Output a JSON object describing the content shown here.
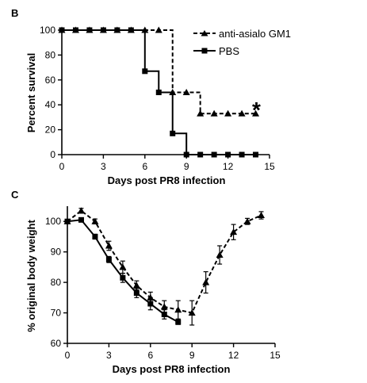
{
  "chart_data": [
    {
      "panel": "B",
      "type": "line",
      "xlabel": "Days post PR8 infection",
      "ylabel": "Percent survival",
      "xlim": [
        0,
        15
      ],
      "ylim": [
        0,
        100
      ],
      "xticks": [
        0,
        3,
        6,
        9,
        12,
        15
      ],
      "yticks": [
        0,
        20,
        40,
        60,
        80,
        100
      ],
      "grid": false,
      "legend": "top-right",
      "annotation": "*",
      "series": [
        {
          "name": "anti-asialo GM1",
          "style": "dashed",
          "marker": "triangle",
          "step_x": [
            0,
            8,
            8,
            10,
            10,
            14
          ],
          "step_y": [
            100,
            100,
            50,
            50,
            33,
            33
          ],
          "marker_x": [
            0,
            1,
            2,
            3,
            4,
            5,
            6,
            7,
            8,
            9,
            10,
            11,
            12,
            13,
            14
          ],
          "marker_y": [
            100,
            100,
            100,
            100,
            100,
            100,
            100,
            100,
            50,
            50,
            33,
            33,
            33,
            33,
            33
          ]
        },
        {
          "name": "PBS",
          "style": "solid",
          "marker": "square",
          "step_x": [
            0,
            6,
            6,
            7,
            7,
            8,
            8,
            9,
            9,
            14
          ],
          "step_y": [
            100,
            100,
            67,
            67,
            50,
            50,
            17,
            17,
            0,
            0
          ],
          "marker_x": [
            0,
            1,
            2,
            3,
            4,
            5,
            6,
            7,
            8,
            9,
            10,
            11,
            12,
            13,
            14
          ],
          "marker_y": [
            100,
            100,
            100,
            100,
            100,
            100,
            67,
            50,
            17,
            0,
            0,
            0,
            0,
            0,
            0
          ]
        }
      ]
    },
    {
      "panel": "C",
      "type": "line",
      "xlabel": "Days post PR8 infection",
      "ylabel": "% original body weight",
      "xlim": [
        0,
        15
      ],
      "ylim": [
        60,
        105
      ],
      "xticks": [
        0,
        3,
        6,
        9,
        12,
        15
      ],
      "yticks": [
        60,
        70,
        80,
        90,
        100
      ],
      "grid": false,
      "series": [
        {
          "name": "anti-asialo GM1",
          "style": "dashed",
          "marker": "triangle",
          "x": [
            0,
            1,
            2,
            3,
            4,
            5,
            6,
            7,
            8,
            9,
            10,
            11,
            12,
            13,
            14
          ],
          "y": [
            100,
            103.5,
            100,
            92,
            85,
            79,
            75,
            72,
            71,
            70,
            80,
            89,
            96.5,
            100,
            102
          ],
          "error": [
            0,
            0.8,
            0.8,
            1.5,
            2,
            1.5,
            1.8,
            2,
            3,
            4,
            3.5,
            3,
            2.5,
            1,
            1.2
          ]
        },
        {
          "name": "PBS",
          "style": "solid",
          "marker": "square",
          "x": [
            0,
            1,
            2,
            3,
            4,
            5,
            6,
            7,
            8
          ],
          "y": [
            100,
            100.5,
            95,
            87.5,
            81.5,
            76.5,
            73,
            69.5,
            67
          ],
          "error": [
            0,
            0.5,
            0.8,
            1,
            1.5,
            1.5,
            2,
            1.5,
            0.8
          ]
        }
      ]
    }
  ]
}
